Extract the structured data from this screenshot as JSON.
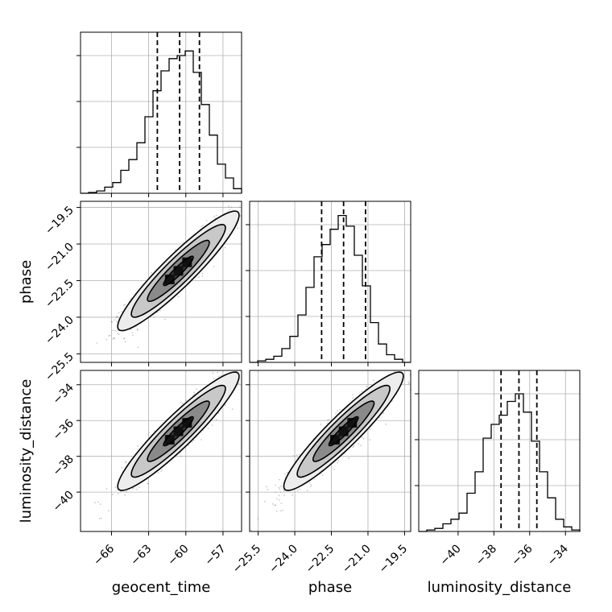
{
  "chart_data": {
    "type": "corner",
    "parameters": [
      "geocent_time",
      "phase",
      "luminosity_distance"
    ],
    "axis_labels": {
      "x": [
        "geocent_time",
        "phase",
        "luminosity_distance"
      ],
      "y": [
        "",
        "phase",
        "luminosity_distance"
      ]
    },
    "grid": true,
    "colors": {
      "line": "#000000",
      "points": "#888888",
      "grid": "#b0b0b0"
    },
    "marginals": [
      {
        "parameter": "geocent_time",
        "xlim": [
          -68.5,
          -55.5
        ],
        "ylim": [
          0,
          1.0
        ],
        "bin_edges": [
          -68.5,
          -67.85,
          -67.2,
          -66.55,
          -65.9,
          -65.25,
          -64.6,
          -63.95,
          -63.3,
          -62.65,
          -62.0,
          -61.35,
          -60.7,
          -60.05,
          -59.4,
          -58.75,
          -58.1,
          -57.45,
          -56.8,
          -56.15,
          -55.5
        ],
        "counts": [
          0.0,
          0.005,
          0.015,
          0.04,
          0.07,
          0.15,
          0.22,
          0.33,
          0.5,
          0.67,
          0.8,
          0.88,
          0.9,
          0.93,
          0.79,
          0.58,
          0.38,
          0.19,
          0.1,
          0.03
        ],
        "quantiles": [
          -62.3,
          -60.5,
          -58.9
        ],
        "ticks": [
          -66,
          -63,
          -60,
          -57
        ],
        "tick_labels": [
          "−66",
          "−63",
          "−60",
          "−57"
        ]
      },
      {
        "parameter": "phase",
        "xlim": [
          -25.85,
          -19.25
        ],
        "ylim": [
          0,
          1.0
        ],
        "bin_edges": [
          -25.85,
          -25.52,
          -25.19,
          -24.86,
          -24.53,
          -24.2,
          -23.87,
          -23.54,
          -23.21,
          -22.88,
          -22.55,
          -22.22,
          -21.89,
          -21.56,
          -21.23,
          -20.9,
          -20.57,
          -20.24,
          -19.91,
          -19.58,
          -19.25
        ],
        "counts": [
          0.0,
          0.01,
          0.02,
          0.04,
          0.09,
          0.17,
          0.31,
          0.49,
          0.69,
          0.77,
          0.87,
          0.96,
          0.89,
          0.7,
          0.5,
          0.26,
          0.12,
          0.05,
          0.02,
          0.0
        ],
        "quantiles": [
          -22.9,
          -22.0,
          -21.1
        ],
        "ticks": [
          -25.5,
          -24.0,
          -22.5,
          -21.0,
          -19.5
        ],
        "tick_labels": [
          "−25.5",
          "−24.0",
          "−22.5",
          "−21.0",
          "−19.5"
        ]
      },
      {
        "parameter": "luminosity_distance",
        "xlim": [
          -42.2,
          -33.2
        ],
        "ylim": [
          0,
          1.0
        ],
        "bin_edges": [
          -42.2,
          -41.75,
          -41.3,
          -40.85,
          -40.4,
          -39.95,
          -39.5,
          -39.05,
          -38.6,
          -38.15,
          -37.7,
          -37.25,
          -36.8,
          -36.35,
          -35.9,
          -35.45,
          -35.0,
          -34.55,
          -34.1,
          -33.65,
          -33.2
        ],
        "counts": [
          0.0,
          0.01,
          0.02,
          0.05,
          0.08,
          0.12,
          0.25,
          0.39,
          0.61,
          0.7,
          0.76,
          0.85,
          0.9,
          0.78,
          0.59,
          0.39,
          0.22,
          0.08,
          0.03,
          0.01
        ],
        "quantiles": [
          -37.6,
          -36.6,
          -35.6
        ],
        "ticks": [
          -40,
          -38,
          -36,
          -34
        ],
        "tick_labels": [
          "−40",
          "−38",
          "−36",
          "−34"
        ]
      }
    ],
    "joint": [
      {
        "x": "geocent_time",
        "y": "phase",
        "row": 1,
        "col": 0,
        "x_mean": -60.6,
        "y_mean": -22.1,
        "x_sd": 2.0,
        "y_sd": 1.0,
        "rho": 0.93,
        "y_ticks": [
          -19.5,
          -21.0,
          -22.5,
          -24.0,
          -25.5
        ],
        "y_tick_labels": [
          "−19.5",
          "−21.0",
          "−22.5",
          "−24.0",
          "−25.5"
        ]
      },
      {
        "x": "geocent_time",
        "y": "luminosity_distance",
        "row": 2,
        "col": 0,
        "x_mean": -60.6,
        "y_mean": -36.6,
        "x_sd": 2.0,
        "y_sd": 1.35,
        "rho": 0.93,
        "y_ticks": [
          -34,
          -36,
          -38,
          -40
        ],
        "y_tick_labels": [
          "−34",
          "−36",
          "−38",
          "−40"
        ]
      },
      {
        "x": "phase",
        "y": "luminosity_distance",
        "row": 2,
        "col": 1,
        "x_mean": -22.0,
        "y_mean": -36.6,
        "x_sd": 1.0,
        "y_sd": 1.35,
        "rho": 0.93
      }
    ]
  }
}
